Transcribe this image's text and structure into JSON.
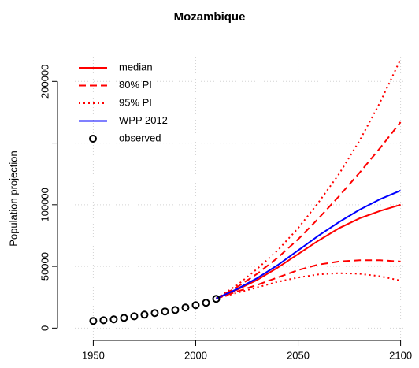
{
  "chart_data": {
    "type": "line",
    "title": "Mozambique",
    "ylabel": "Population projection",
    "xlim": [
      1941,
      2104
    ],
    "ylim": [
      -10000,
      220000
    ],
    "xticks": [
      1950,
      2000,
      2050,
      2100
    ],
    "yticks": [
      0,
      50000,
      100000,
      {
        "value": 150000,
        "label": null
      },
      200000
    ],
    "grid": true,
    "legend": "topleft",
    "x": [
      2010,
      2020,
      2030,
      2040,
      2050,
      2060,
      2070,
      2080,
      2090,
      2100
    ],
    "series": [
      {
        "name": "median",
        "color": "#ff0000",
        "linestyle": "solid",
        "values": [
          24000,
          31000,
          39000,
          49000,
          60000,
          71000,
          81000,
          89000,
          95000,
          100000
        ]
      },
      {
        "name": "80% PI",
        "color": "#ff0000",
        "linestyle": "dashed",
        "upper": [
          24000,
          33000,
          44000,
          57000,
          72000,
          89000,
          107000,
          126000,
          146000,
          167000
        ],
        "lower": [
          24000,
          29500,
          35000,
          41000,
          47000,
          51500,
          54000,
          55000,
          55000,
          54000
        ]
      },
      {
        "name": "95% PI",
        "color": "#ff0000",
        "linestyle": "dotted",
        "upper": [
          24000,
          34500,
          48000,
          63000,
          81000,
          102000,
          125000,
          152000,
          183000,
          218000
        ],
        "lower": [
          24000,
          28500,
          33000,
          37500,
          41000,
          43500,
          44500,
          44000,
          42000,
          38500
        ]
      },
      {
        "name": "WPP 2012",
        "color": "#0000ff",
        "linestyle": "solid",
        "values": [
          24000,
          31500,
          40500,
          51000,
          63000,
          75000,
          86000,
          96000,
          104500,
          111500
        ]
      }
    ],
    "observed": {
      "name": "observed",
      "color": "#000000",
      "x": [
        1950,
        1955,
        1960,
        1965,
        1970,
        1975,
        1980,
        1985,
        1990,
        1995,
        2000,
        2005,
        2010
      ],
      "values": [
        5800,
        6400,
        7100,
        8300,
        9600,
        10900,
        12200,
        13500,
        14700,
        16700,
        18600,
        20500,
        23700
      ]
    }
  }
}
